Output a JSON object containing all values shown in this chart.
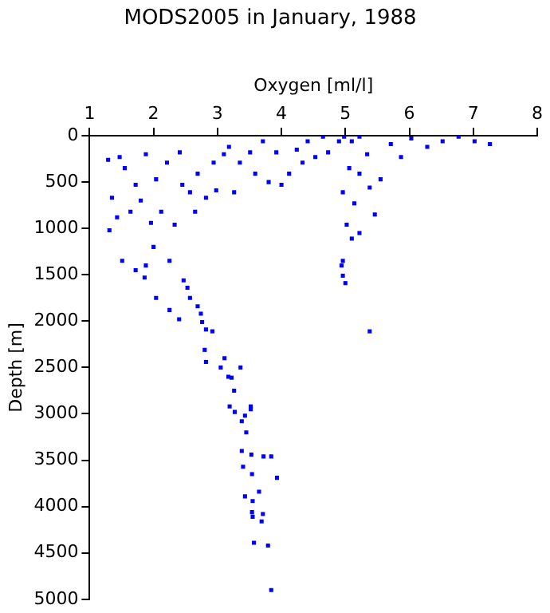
{
  "chart_data": {
    "type": "scatter",
    "title": "MODS2005 in January, 1988",
    "xlabel": "Oxygen [ml/l]",
    "ylabel": "Depth [m]",
    "xlim": [
      1,
      8
    ],
    "xticks": [
      1,
      2,
      3,
      4,
      5,
      6,
      7,
      8
    ],
    "ylim": [
      5000,
      0
    ],
    "yticks": [
      0,
      500,
      1000,
      1500,
      2000,
      2500,
      3000,
      3500,
      4000,
      4500,
      5000
    ],
    "grid": false,
    "legend": false,
    "marker": "square",
    "series": [
      {
        "color": "#0000ff",
        "x": [
          1.29,
          1.35,
          1.47,
          1.55,
          1.43,
          1.31,
          1.51,
          1.64,
          1.72,
          1.8,
          1.88,
          1.96,
          2.04,
          2.0,
          2.12,
          2.21,
          2.25,
          2.33,
          2.41,
          2.45,
          2.57,
          2.65,
          2.69,
          2.82,
          2.94,
          2.98,
          3.1,
          3.18,
          3.26,
          3.35,
          3.51,
          3.59,
          3.71,
          3.8,
          3.92,
          4.0,
          4.12,
          4.24,
          4.33,
          4.41,
          4.53,
          4.65,
          4.73,
          4.9,
          4.98,
          5.1,
          5.22,
          5.34,
          5.38,
          5.55,
          5.71,
          5.87,
          6.03,
          6.28,
          6.52,
          6.77,
          7.02,
          7.26,
          5.06,
          4.96,
          5.14,
          5.02,
          5.1,
          4.96,
          5.22,
          5.46,
          5.22,
          1.88,
          4.94,
          4.96,
          5.0,
          5.38,
          1.72,
          1.86,
          2.04,
          2.25,
          2.4,
          2.47,
          2.53,
          2.57,
          2.69,
          2.74,
          2.76,
          2.82,
          2.92,
          2.8,
          2.82,
          3.05,
          3.11,
          3.17,
          3.22,
          3.26,
          3.36,
          3.19,
          3.27,
          3.52,
          3.52,
          3.43,
          3.38,
          3.45,
          3.38,
          3.53,
          3.72,
          3.84,
          3.4,
          3.54,
          3.93,
          3.65,
          3.43,
          3.55,
          3.54,
          3.55,
          3.71,
          3.69,
          3.57,
          3.79,
          3.84
        ],
        "values": [
          260,
          670,
          230,
          350,
          880,
          1020,
          1350,
          820,
          530,
          700,
          200,
          940,
          470,
          1200,
          820,
          290,
          1350,
          960,
          180,
          530,
          610,
          820,
          410,
          670,
          290,
          590,
          200,
          120,
          610,
          290,
          180,
          410,
          60,
          500,
          180,
          530,
          410,
          150,
          290,
          60,
          230,
          10,
          180,
          60,
          10,
          60,
          10,
          200,
          560,
          470,
          90,
          230,
          30,
          120,
          60,
          10,
          60,
          90,
          350,
          610,
          730,
          960,
          1110,
          1350,
          1050,
          850,
          410,
          1400,
          1400,
          1510,
          1590,
          2110,
          1450,
          1530,
          1750,
          1880,
          1980,
          1560,
          1640,
          1750,
          1840,
          1920,
          2010,
          2090,
          2110,
          2310,
          2440,
          2500,
          2400,
          2600,
          2610,
          2750,
          2500,
          2920,
          2980,
          2920,
          2950,
          3020,
          3080,
          3200,
          3400,
          3440,
          3460,
          3460,
          3570,
          3650,
          3690,
          3840,
          3890,
          3940,
          4060,
          4110,
          4080,
          4160,
          4390,
          4420,
          4900
        ]
      }
    ]
  }
}
